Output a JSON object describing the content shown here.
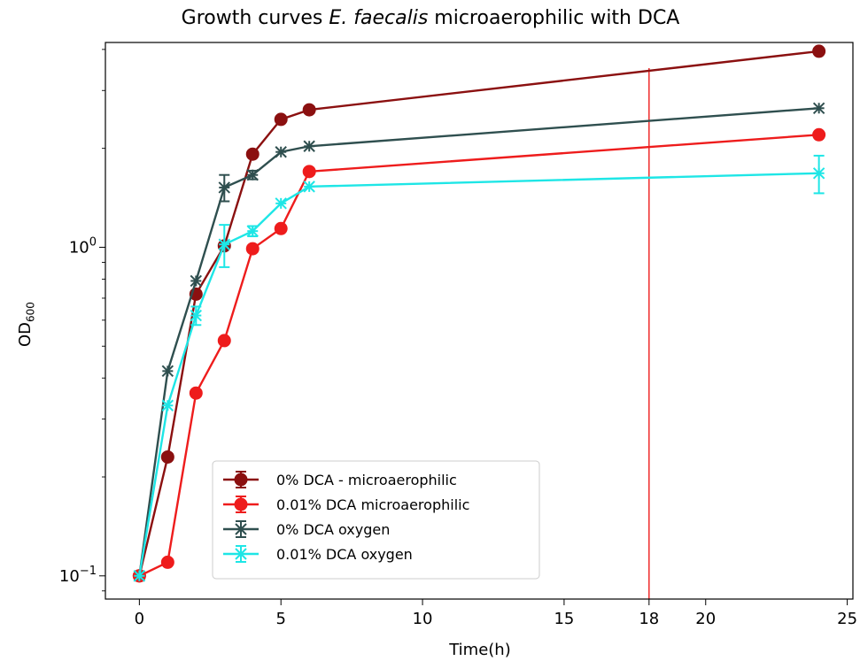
{
  "chart_data": {
    "type": "line",
    "title_prefix": "Growth curves",
    "title_species": "E. faecalis",
    "title_suffix": "microaerophilic with DCA",
    "xlabel": "Time(h)",
    "ylabel_main": "OD",
    "ylabel_sub": "600",
    "xlim": [
      -1.2,
      25.2
    ],
    "ylim": [
      0.085,
      4.2
    ],
    "yscale": "log",
    "x_ticks": [
      0,
      5,
      10,
      15,
      20,
      25
    ],
    "y_tick_labels": [
      {
        "value": 1.0,
        "base": "10",
        "exp": "0"
      },
      {
        "value": 0.1,
        "base": "10",
        "exp": "−1"
      }
    ],
    "vline": {
      "x": 18,
      "label": "18",
      "color": "#ee1c1c"
    },
    "legend_position": "lower-center",
    "grid": false,
    "series": [
      {
        "name": "0% DCA - microaerophilic",
        "color": "#8b1010",
        "marker": "circle",
        "x": [
          0,
          1,
          2,
          3,
          4,
          5,
          6,
          24
        ],
        "y": [
          0.1,
          0.23,
          0.72,
          1.01,
          1.92,
          2.45,
          2.62,
          3.95
        ],
        "err": [
          0,
          0,
          0,
          0,
          0,
          0,
          0,
          0
        ]
      },
      {
        "name": "0.01% DCA microaerophilic",
        "color": "#ee1c1c",
        "marker": "circle",
        "x": [
          0,
          1,
          2,
          3,
          4,
          5,
          6,
          24
        ],
        "y": [
          0.1,
          0.11,
          0.36,
          0.52,
          0.99,
          1.14,
          1.7,
          2.2
        ],
        "err": [
          0,
          0,
          0,
          0,
          0,
          0,
          0,
          0
        ]
      },
      {
        "name": "0% DCA oxygen",
        "color": "#2f4f4f",
        "marker": "star",
        "x": [
          0,
          1,
          2,
          3,
          4,
          5,
          6,
          24
        ],
        "y": [
          0.1,
          0.42,
          0.79,
          1.52,
          1.66,
          1.95,
          2.03,
          2.65
        ],
        "err": [
          0,
          0,
          0,
          0.14,
          0.05,
          0,
          0,
          0
        ]
      },
      {
        "name": "0.01% DCA oxygen",
        "color": "#1ee6e6",
        "marker": "star",
        "x": [
          0,
          1,
          2,
          3,
          4,
          5,
          6,
          24
        ],
        "y": [
          0.1,
          0.33,
          0.62,
          1.02,
          1.12,
          1.36,
          1.53,
          1.68
        ],
        "err": [
          0,
          0,
          0.04,
          0.15,
          0.04,
          0,
          0,
          0.22
        ]
      }
    ]
  }
}
